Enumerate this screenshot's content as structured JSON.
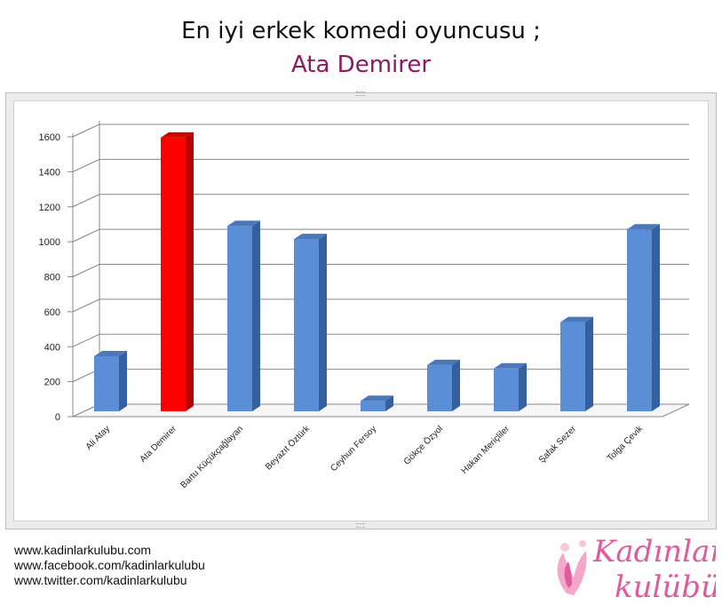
{
  "header": {
    "title_line1": "En iyi erkek komedi oyuncusu ;",
    "title_line2": "Ata Demirer"
  },
  "chart_data": {
    "type": "bar",
    "title": "",
    "xlabel": "",
    "ylabel": "",
    "ylim": [
      0,
      1600
    ],
    "yticks": [
      0,
      200,
      400,
      600,
      800,
      1000,
      1200,
      1400,
      1600
    ],
    "grid": true,
    "legend": "none",
    "categories": [
      "Ali Atay",
      "Ata Demirer",
      "Bartu Küçükçağlayan",
      "Beyazıt Öztürk",
      "Ceyhun Fersoy",
      "Gökçe Özyol",
      "Hakan Meriçliler",
      "Şafak Sezer",
      "Tolga Çevik"
    ],
    "values": [
      315,
      1565,
      1060,
      985,
      60,
      265,
      245,
      510,
      1040
    ],
    "colors": {
      "default_bar": "#5a8fd8",
      "highlight_bar": "#ff0000",
      "highlight_index": 1
    }
  },
  "footer": {
    "urls": [
      "www.kadinlarkulubu.com",
      "www.facebook.com/kadinlarkulubu",
      "www.twitter.com/kadinlarkulubu"
    ],
    "logo_text_line1": "Kadınlar",
    "logo_text_line2": "kulübü",
    "logo_color": "#e05a9c"
  }
}
